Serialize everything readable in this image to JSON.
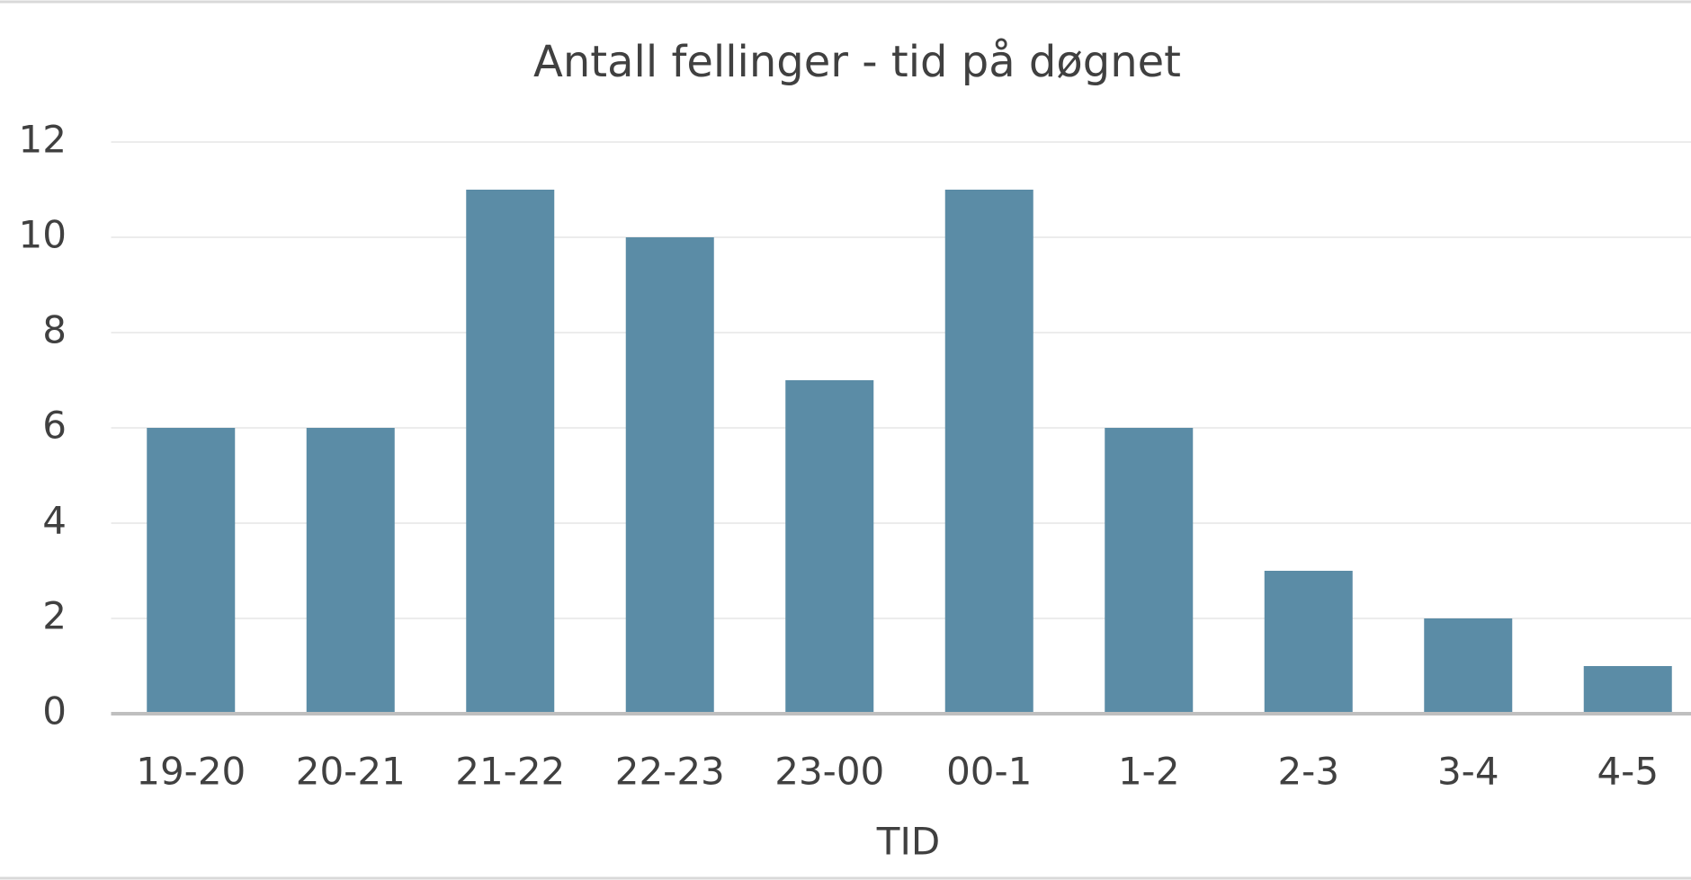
{
  "chart_data": {
    "type": "bar",
    "title": "Antall fellinger - tid på døgnet",
    "x_label": "TID",
    "categories": [
      "19-20",
      "20-21",
      "21-22",
      "22-23",
      "23-00",
      "00-1",
      "1-2",
      "2-3",
      "3-4",
      "4-5"
    ],
    "values": [
      6,
      6,
      11,
      10,
      7,
      11,
      6,
      3,
      2,
      1
    ],
    "color": "#5b8ca6",
    "ylim": [
      0,
      12
    ],
    "yticks": [
      0,
      2,
      4,
      6,
      8,
      10,
      12
    ],
    "grid": true
  }
}
